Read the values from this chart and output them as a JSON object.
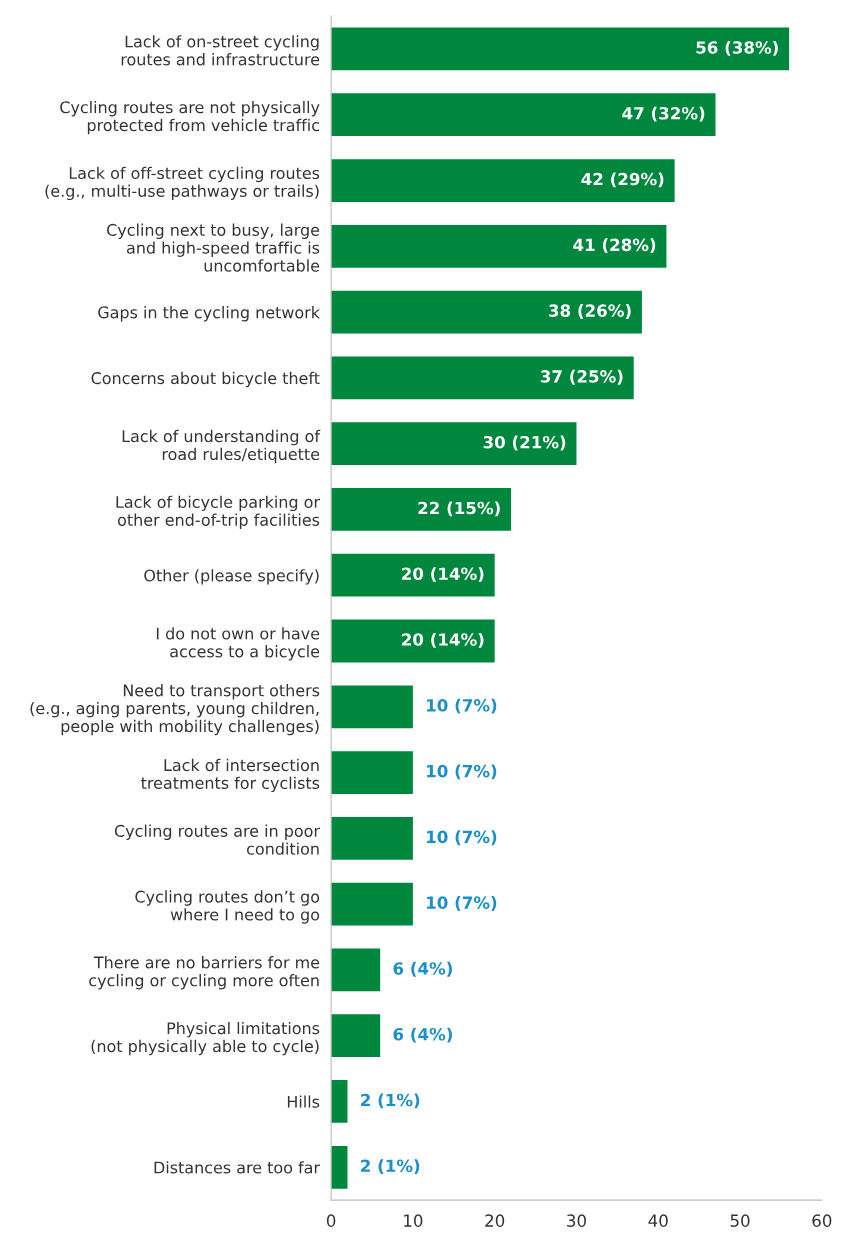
{
  "chart_data": {
    "type": "bar",
    "orientation": "horizontal",
    "color": "#00873e",
    "categories": [
      "Lack of on-street cycling\nroutes and infrastructure",
      "Cycling routes are not physically\nprotected from vehicle traffic",
      "Lack of off-street cycling routes\n(e.g., multi-use pathways or trails)",
      "Cycling next to busy, large\nand high-speed traffic is\nuncomfortable",
      "Gaps in the cycling network",
      "Concerns about bicycle theft",
      "Lack of understanding of\nroad rules/etiquette",
      "Lack of bicycle parking or\nother end-of-trip facilities",
      "Other (please specify)",
      "I do not own or have\naccess to a bicycle",
      "Need to transport others\n(e.g., aging parents, young children,\npeople with mobility challenges)",
      "Lack of intersection\ntreatments for cyclists",
      "Cycling routes are in poor\ncondition",
      "Cycling routes don’t go\nwhere I need to go",
      "There are no barriers for me\ncycling or cycling more often",
      "Physical limitations\n(not physically able to cycle)",
      "Hills",
      "Distances are too far"
    ],
    "values": [
      56,
      47,
      42,
      41,
      38,
      37,
      30,
      22,
      20,
      20,
      10,
      10,
      10,
      10,
      6,
      6,
      2,
      2
    ],
    "value_labels": [
      "56 (38%)",
      "47 (32%)",
      "42 (29%)",
      "41 (28%)",
      "38 (26%)",
      "37 (25%)",
      "30 (21%)",
      "22 (15%)",
      "20 (14%)",
      "20 (14%)",
      "10 (7%)",
      "10 (7%)",
      "10 (7%)",
      "10 (7%)",
      "6 (4%)",
      "6 (4%)",
      "2 (1%)",
      "2 (1%)"
    ],
    "xlim": [
      0,
      60
    ],
    "xticks": [
      0,
      10,
      20,
      30,
      40,
      50,
      60
    ],
    "grid": false
  }
}
